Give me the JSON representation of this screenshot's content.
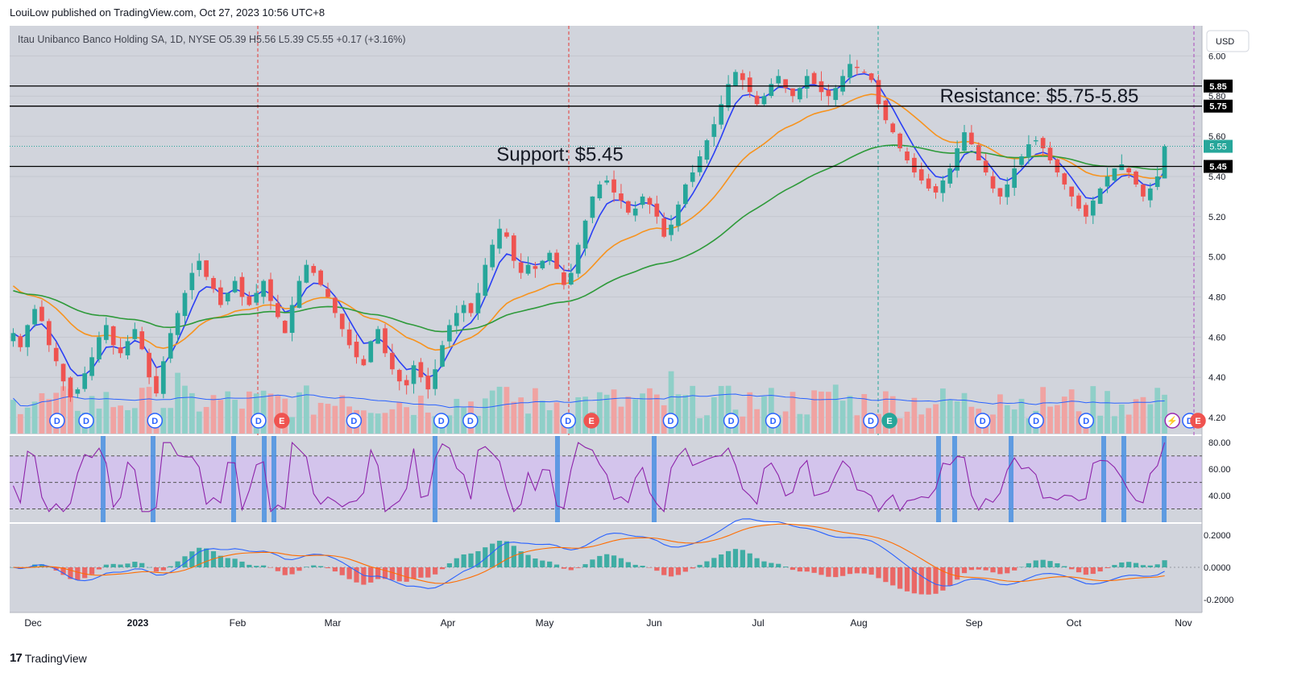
{
  "header": {
    "published": "LouiLow published on TradingView.com, Oct 27, 2023 10:56 UTC+8",
    "symbol_line": "Itau Unibanco Banco Holding SA, 1D, NYSE  O5.39  H5.56  L5.39  C5.55  +0.17 (+3.16%)",
    "currency_button": "USD"
  },
  "footer": {
    "logo": "17",
    "brand": "TradingView"
  },
  "colors": {
    "pane_bg": "#d1d4dc",
    "rsi_band": "#d3c4ec",
    "up": "#26a69a",
    "down": "#ef5350",
    "ema_fast": "#2a3ff5",
    "ema_mid": "#f7931e",
    "ema_slow": "#2e9a3a",
    "rsi_line": "#8e24aa",
    "macd_line": "#2962ff",
    "signal_line": "#ff6d00",
    "highlight": "#4a90e2"
  },
  "chart_data": {
    "type": "candlestick",
    "symbol": "Itau Unibanco Banco Holding SA, 1D, NYSE",
    "ohlc_last": {
      "open": 5.39,
      "high": 5.56,
      "low": 5.39,
      "close": 5.55,
      "change": 0.17,
      "change_pct": 3.16
    },
    "price_axis": {
      "ticks": [
        "6.00",
        "5.80",
        "5.60",
        "5.40",
        "5.20",
        "5.00",
        "4.80",
        "4.60",
        "4.40",
        "4.20"
      ],
      "ylim": [
        4.12,
        6.15
      ]
    },
    "time_axis": [
      "Dec",
      "2023",
      "Feb",
      "Mar",
      "Apr",
      "May",
      "Jun",
      "Jul",
      "Aug",
      "Sep",
      "Oct",
      "Nov"
    ],
    "horizontal_levels": [
      {
        "value": 5.85,
        "label": "5.85"
      },
      {
        "value": 5.75,
        "label": "5.75"
      },
      {
        "value": 5.45,
        "label": "5.45"
      }
    ],
    "last_price_label": "5.55",
    "annotations": [
      {
        "text": "Resistance: $5.75-5.85",
        "price": 5.8
      },
      {
        "text": "Support: $5.45",
        "price": 5.51
      }
    ],
    "close_series": [
      4.62,
      4.55,
      4.66,
      4.74,
      4.68,
      4.56,
      4.48,
      4.38,
      4.3,
      4.34,
      4.42,
      4.5,
      4.6,
      4.66,
      4.56,
      4.52,
      4.58,
      4.64,
      4.54,
      4.4,
      4.32,
      4.48,
      4.62,
      4.72,
      4.82,
      4.92,
      4.98,
      4.9,
      4.84,
      4.76,
      4.82,
      4.88,
      4.8,
      4.76,
      4.82,
      4.88,
      4.78,
      4.7,
      4.62,
      4.76,
      4.88,
      4.96,
      4.92,
      4.86,
      4.8,
      4.72,
      4.64,
      4.56,
      4.5,
      4.46,
      4.58,
      4.64,
      4.52,
      4.44,
      4.38,
      4.36,
      4.46,
      4.4,
      4.34,
      4.44,
      4.56,
      4.66,
      4.72,
      4.76,
      4.72,
      4.82,
      4.96,
      5.06,
      5.14,
      5.1,
      4.98,
      4.92,
      4.96,
      4.94,
      4.98,
      5.02,
      4.94,
      4.86,
      4.92,
      5.06,
      5.18,
      5.3,
      5.36,
      5.38,
      5.32,
      5.28,
      5.22,
      5.24,
      5.3,
      5.26,
      5.2,
      5.1,
      5.16,
      5.26,
      5.36,
      5.42,
      5.5,
      5.58,
      5.66,
      5.76,
      5.86,
      5.92,
      5.88,
      5.82,
      5.76,
      5.8,
      5.86,
      5.9,
      5.84,
      5.8,
      5.84,
      5.9,
      5.86,
      5.82,
      5.8,
      5.84,
      5.9,
      5.96,
      5.94,
      5.92,
      5.88,
      5.76,
      5.68,
      5.62,
      5.54,
      5.48,
      5.42,
      5.38,
      5.34,
      5.32,
      5.38,
      5.44,
      5.54,
      5.62,
      5.56,
      5.48,
      5.42,
      5.34,
      5.3,
      5.36,
      5.44,
      5.5,
      5.56,
      5.58,
      5.54,
      5.48,
      5.42,
      5.36,
      5.3,
      5.24,
      5.2,
      5.28,
      5.34,
      5.4,
      5.44,
      5.46,
      5.42,
      5.36,
      5.3,
      5.34,
      5.4,
      5.55
    ],
    "volume_axis_ref": "relative",
    "rsi": {
      "ticks": [
        "80.00",
        "60.00",
        "40.00"
      ],
      "upper": 70,
      "mid": 50,
      "lower": 30
    },
    "macd": {
      "ticks": [
        "0.2000",
        "0.0000",
        "-0.2000"
      ]
    },
    "event_markers": [
      {
        "label": "D",
        "t": 0.02
      },
      {
        "label": "D",
        "t": 0.045
      },
      {
        "label": "D",
        "t": 0.104
      },
      {
        "label": "D",
        "t": 0.193
      },
      {
        "label": "E",
        "t": 0.213
      },
      {
        "label": "D",
        "t": 0.275
      },
      {
        "label": "D",
        "t": 0.35
      },
      {
        "label": "D",
        "t": 0.375
      },
      {
        "label": "D",
        "t": 0.459
      },
      {
        "label": "E",
        "t": 0.479
      },
      {
        "label": "D",
        "t": 0.547
      },
      {
        "label": "D",
        "t": 0.599
      },
      {
        "label": "D",
        "t": 0.635
      },
      {
        "label": "D",
        "t": 0.719
      },
      {
        "label": "E",
        "t": 0.735
      },
      {
        "label": "D",
        "t": 0.815
      },
      {
        "label": "D",
        "t": 0.861
      },
      {
        "label": "D",
        "t": 0.904
      },
      {
        "label": "⚡",
        "t": 0.978
      },
      {
        "label": "D",
        "t": 0.993
      },
      {
        "label": "E",
        "t": 1.0
      }
    ]
  }
}
